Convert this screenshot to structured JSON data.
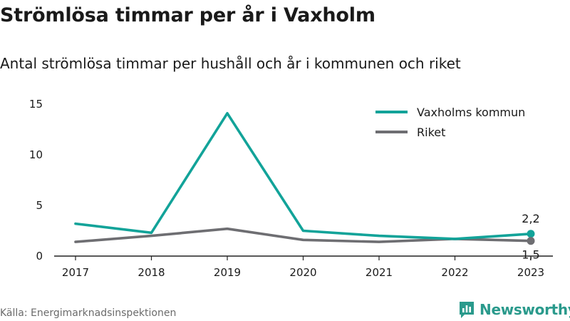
{
  "header": {
    "title": "Strömlösa timmar per år i Vaxholm",
    "subtitle": "Antal strömlösa timmar per hushåll och år i kommunen och riket"
  },
  "footer": {
    "source": "Källa: Energimarknadsinspektionen",
    "brand": "Newsworthy"
  },
  "colors": {
    "vaxholm": "#12a399",
    "riket": "#6e6e72",
    "brand": "#2a9a8c"
  },
  "chart_data": {
    "type": "line",
    "x": [
      "2017",
      "2018",
      "2019",
      "2020",
      "2021",
      "2022",
      "2023"
    ],
    "series": [
      {
        "name": "Vaxholms kommun",
        "values": [
          3.2,
          2.3,
          14.1,
          2.5,
          2.0,
          1.7,
          2.2
        ],
        "color": "#12a399"
      },
      {
        "name": "Riket",
        "values": [
          1.4,
          2.0,
          2.7,
          1.6,
          1.4,
          1.7,
          1.5
        ],
        "color": "#6e6e72"
      }
    ],
    "yticks": [
      "0",
      "5",
      "10",
      "15"
    ],
    "ylim": [
      0,
      15
    ],
    "end_labels": [
      "2,2",
      "1,5"
    ],
    "legend_position": "top-right",
    "grid": false
  }
}
